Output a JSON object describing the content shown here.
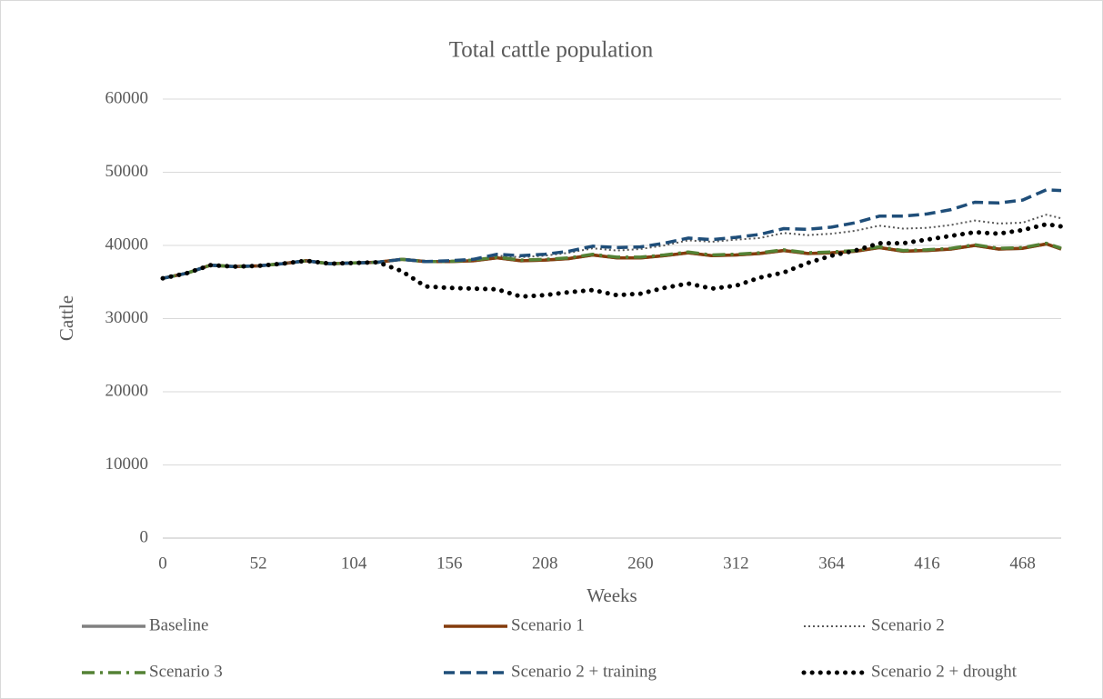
{
  "chart_data": {
    "type": "line",
    "title": "Total cattle population",
    "x_label": "Weeks",
    "y_label": "Cattle",
    "x": [
      0,
      13,
      26,
      39,
      52,
      65,
      78,
      91,
      104,
      117,
      130,
      143,
      156,
      169,
      182,
      195,
      208,
      221,
      234,
      247,
      260,
      273,
      286,
      299,
      312,
      325,
      338,
      351,
      364,
      377,
      390,
      403,
      416,
      429,
      442,
      455,
      468,
      481,
      489
    ],
    "xlim": [
      0,
      489
    ],
    "xticks": [
      0,
      52,
      104,
      156,
      208,
      260,
      312,
      364,
      416,
      468
    ],
    "ylim": [
      0,
      60000
    ],
    "yticks": [
      0,
      10000,
      20000,
      30000,
      40000,
      50000,
      60000
    ],
    "grid": true,
    "legend": "bottom",
    "series": [
      {
        "name": "Baseline",
        "color": "#808080",
        "style": "solid",
        "values": [
          35500,
          36200,
          37300,
          37100,
          37200,
          37500,
          37900,
          37500,
          37600,
          37700,
          38100,
          37800,
          37800,
          37900,
          38300,
          37900,
          38000,
          38200,
          38700,
          38300,
          38300,
          38600,
          39000,
          38600,
          38700,
          38900,
          39300,
          38900,
          39000,
          39200,
          39700,
          39200,
          39300,
          39500,
          40000,
          39500,
          39600,
          40200,
          39500
        ]
      },
      {
        "name": "Scenario 1",
        "color": "#843C0C",
        "style": "solid",
        "values": [
          35500,
          36200,
          37300,
          37100,
          37200,
          37500,
          37900,
          37500,
          37600,
          37700,
          38100,
          37800,
          37800,
          37900,
          38300,
          37900,
          38000,
          38200,
          38700,
          38300,
          38300,
          38600,
          39000,
          38600,
          38700,
          38900,
          39300,
          38900,
          39000,
          39200,
          39700,
          39200,
          39300,
          39500,
          40000,
          39500,
          39600,
          40200,
          39500
        ]
      },
      {
        "name": "Scenario 2",
        "color": "#595959",
        "style": "dotted",
        "values": [
          35500,
          36200,
          37300,
          37100,
          37200,
          37500,
          37900,
          37500,
          37600,
          37700,
          38100,
          37800,
          37900,
          38000,
          38600,
          38400,
          38600,
          39000,
          39600,
          39300,
          39500,
          40000,
          40700,
          40500,
          40800,
          41000,
          41700,
          41400,
          41600,
          42000,
          42700,
          42300,
          42400,
          42800,
          43400,
          43000,
          43100,
          44200,
          43700
        ]
      },
      {
        "name": "Scenario 3",
        "color": "#548235",
        "style": "dashdot",
        "values": [
          35500,
          36200,
          37300,
          37100,
          37200,
          37500,
          37900,
          37500,
          37600,
          37700,
          38100,
          37800,
          37800,
          38000,
          38400,
          38000,
          38100,
          38300,
          38800,
          38400,
          38400,
          38700,
          39100,
          38700,
          38800,
          39000,
          39400,
          39000,
          39100,
          39300,
          39800,
          39300,
          39400,
          39600,
          40100,
          39600,
          39700,
          40300,
          39600
        ]
      },
      {
        "name": "Scenario 2 + training",
        "color": "#1F4E79",
        "style": "dashed",
        "values": [
          35500,
          36200,
          37300,
          37100,
          37200,
          37500,
          37900,
          37500,
          37600,
          37700,
          38100,
          37800,
          37900,
          38100,
          38800,
          38600,
          38800,
          39200,
          39900,
          39700,
          39800,
          40300,
          41000,
          40800,
          41100,
          41500,
          42300,
          42200,
          42500,
          43100,
          44000,
          44000,
          44300,
          44900,
          45900,
          45800,
          46200,
          47600,
          47500
        ]
      },
      {
        "name": "Scenario 2 + drought",
        "color": "#000000",
        "style": "bigdots",
        "values": [
          35500,
          36200,
          37300,
          37100,
          37200,
          37500,
          37900,
          37500,
          37600,
          37700,
          36500,
          34400,
          34200,
          34100,
          34000,
          33000,
          33200,
          33600,
          33900,
          33200,
          33400,
          34200,
          34800,
          34100,
          34500,
          35600,
          36300,
          37600,
          38600,
          39300,
          40300,
          40300,
          40800,
          41300,
          41800,
          41600,
          42100,
          42900,
          42600
        ]
      }
    ]
  }
}
